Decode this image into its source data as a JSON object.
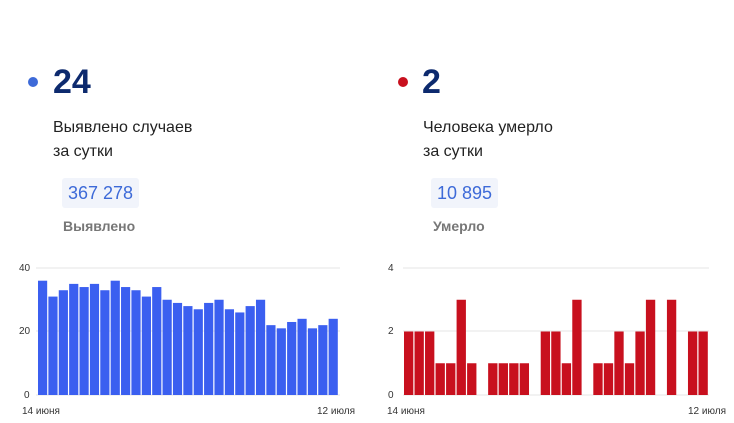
{
  "cases": {
    "accent": "#3d6ad8",
    "daily_value": "24",
    "caption_line1": "Выявлено случаев",
    "caption_line2": "за сутки",
    "total": "367 278",
    "total_label": "Выявлено"
  },
  "deaths": {
    "accent": "#c8101e",
    "daily_value": "2",
    "caption_line1": "Человека умерло",
    "caption_line2": "за сутки",
    "total": "10 895",
    "total_label": "Умерло"
  },
  "chart_data": [
    {
      "type": "bar",
      "color": "#3b5ff0",
      "x_start_label": "14 июня",
      "x_end_label": "12 июля",
      "ylim": [
        0,
        40
      ],
      "yticks": [
        "0",
        "20",
        "40"
      ],
      "grid": true,
      "values": [
        36,
        31,
        33,
        35,
        34,
        35,
        33,
        36,
        34,
        33,
        31,
        34,
        30,
        29,
        28,
        27,
        29,
        30,
        27,
        26,
        28,
        30,
        22,
        21,
        23,
        24,
        21,
        22,
        24
      ]
    },
    {
      "type": "bar",
      "color": "#c8101e",
      "x_start_label": "14 июня",
      "x_end_label": "12 июля",
      "ylim": [
        0,
        4
      ],
      "yticks": [
        "0",
        "2",
        "4"
      ],
      "grid": true,
      "values": [
        2,
        2,
        2,
        1,
        1,
        3,
        1,
        0,
        1,
        1,
        1,
        1,
        0,
        2,
        2,
        1,
        3,
        0,
        1,
        1,
        2,
        1,
        2,
        3,
        0,
        3,
        0,
        2,
        2
      ]
    }
  ]
}
